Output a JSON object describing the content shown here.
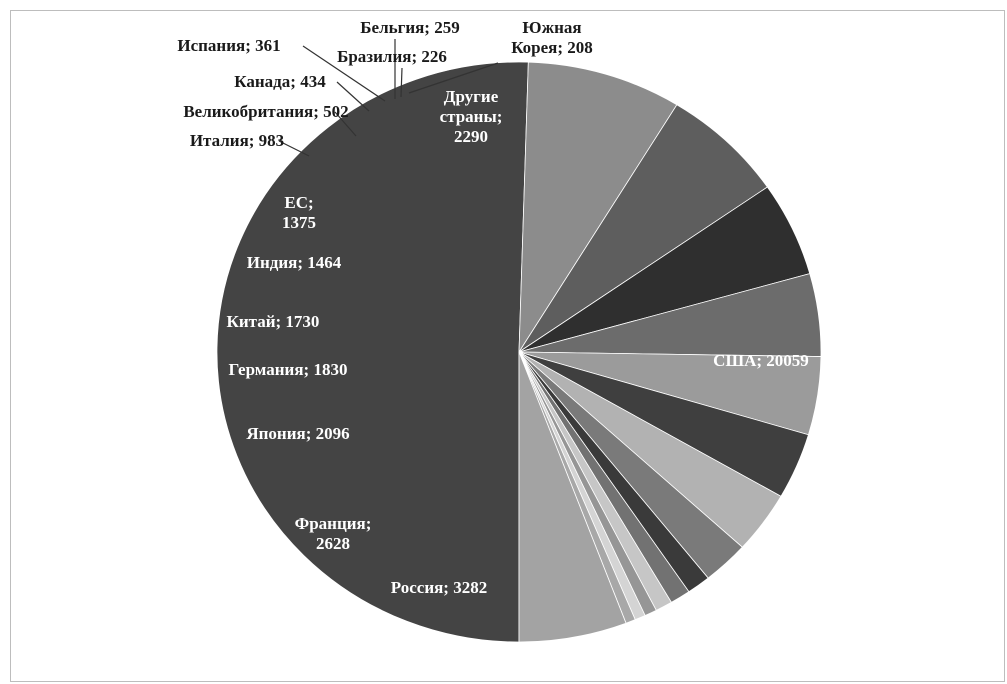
{
  "chart_data": {
    "type": "pie",
    "title": "",
    "slices": [
      {
        "label": "США; 20059",
        "value": 20059,
        "color": "#444444"
      },
      {
        "label": "Россия; 3282",
        "value": 3282,
        "color": "#8c8c8c"
      },
      {
        "label": "Франция; 2628",
        "value": 2628,
        "color": "#5e5e5e"
      },
      {
        "label": "Япония; 2096",
        "value": 2096,
        "color": "#2f2f2f"
      },
      {
        "label": "Германия; 1830",
        "value": 1830,
        "color": "#6c6c6c"
      },
      {
        "label": "Китай; 1730",
        "value": 1730,
        "color": "#9b9b9b"
      },
      {
        "label": "Индия; 1464",
        "value": 1464,
        "color": "#3f3f3f"
      },
      {
        "label": "ЕС; 1375",
        "value": 1375,
        "color": "#b2b2b2"
      },
      {
        "label": "Италия; 983",
        "value": 983,
        "color": "#7a7a7a"
      },
      {
        "label": "Великобритания; 502",
        "value": 502,
        "color": "#3a3a3a"
      },
      {
        "label": "Канада; 434",
        "value": 434,
        "color": "#727272"
      },
      {
        "label": "Испания; 361",
        "value": 361,
        "color": "#c6c6c6"
      },
      {
        "label": "Бельгия; 259",
        "value": 259,
        "color": "#969696"
      },
      {
        "label": "Бразилия; 226",
        "value": 226,
        "color": "#d4d4d4"
      },
      {
        "label": "Южная Корея; 208",
        "value": 208,
        "color": "#a8a8a8"
      },
      {
        "label": "Другие страны; 2290",
        "value": 2290,
        "color": "#a3a3a3"
      }
    ]
  }
}
